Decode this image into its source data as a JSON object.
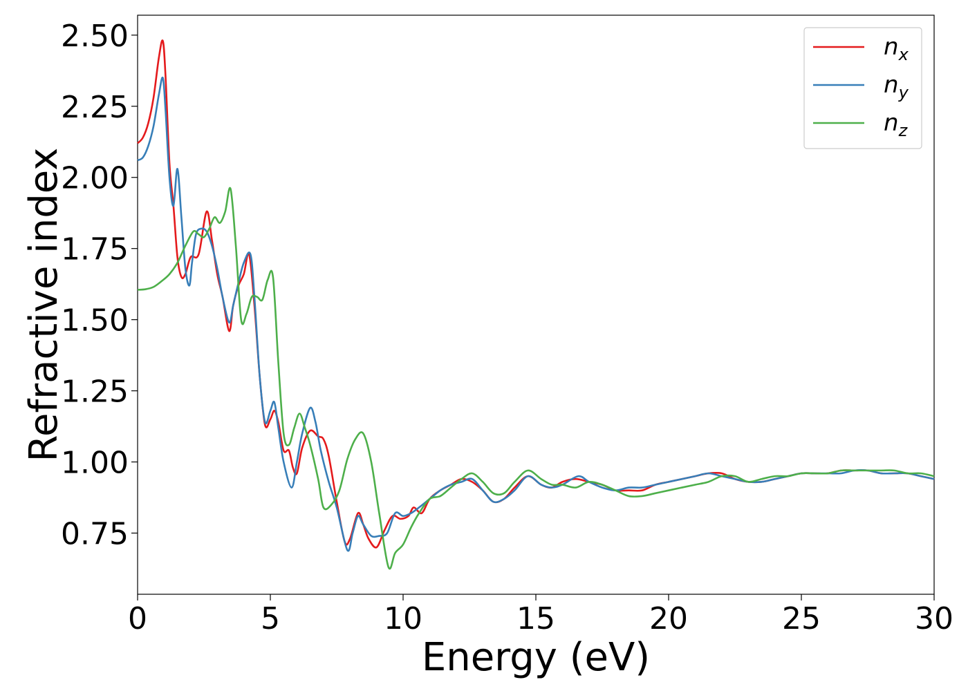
{
  "chart_data": {
    "type": "line",
    "xlabel": "Energy (eV)",
    "ylabel": "Refractive index",
    "xlim": [
      0,
      30
    ],
    "ylim": [
      0.535,
      2.57
    ],
    "xticks": [
      0,
      5,
      10,
      15,
      20,
      25,
      30
    ],
    "xtick_labels": [
      "0",
      "5",
      "10",
      "15",
      "20",
      "25",
      "30"
    ],
    "yticks": [
      0.75,
      1.0,
      1.25,
      1.5,
      1.75,
      2.0,
      2.25,
      2.5
    ],
    "ytick_labels": [
      "0.75",
      "1.00",
      "1.25",
      "1.50",
      "1.75",
      "2.00",
      "2.25",
      "2.50"
    ],
    "grid": false,
    "legend_position": "top-right",
    "series": [
      {
        "name": "n_x",
        "label_base": "n",
        "label_sub": "x",
        "color": "#e41a1c",
        "x": [
          0,
          0.2,
          0.4,
          0.6,
          0.8,
          0.95,
          1.05,
          1.2,
          1.35,
          1.5,
          1.65,
          1.8,
          2.0,
          2.3,
          2.6,
          2.8,
          3.0,
          3.2,
          3.45,
          3.6,
          3.8,
          4.0,
          4.2,
          4.4,
          4.6,
          4.8,
          5.0,
          5.15,
          5.3,
          5.5,
          5.7,
          5.85,
          6.0,
          6.2,
          6.5,
          6.8,
          7.0,
          7.2,
          7.5,
          7.8,
          8.0,
          8.3,
          8.5,
          8.7,
          9.0,
          9.3,
          9.6,
          9.9,
          10.2,
          10.4,
          10.7,
          11.0,
          11.4,
          11.8,
          12.2,
          12.6,
          13.0,
          13.4,
          13.8,
          14.2,
          14.7,
          15.2,
          15.6,
          16.0,
          16.5,
          17.0,
          17.5,
          18.0,
          18.5,
          19.0,
          19.5,
          20.0,
          20.5,
          21.0,
          21.5,
          22.0,
          22.5,
          23.0,
          23.5,
          24.0,
          24.5,
          25.0,
          25.5,
          26.0,
          26.5,
          27.0,
          27.5,
          28.0,
          28.5,
          29.0,
          29.5,
          30.0
        ],
        "values": [
          2.12,
          2.14,
          2.19,
          2.28,
          2.42,
          2.48,
          2.36,
          2.05,
          1.9,
          1.72,
          1.65,
          1.66,
          1.72,
          1.73,
          1.88,
          1.78,
          1.66,
          1.58,
          1.46,
          1.55,
          1.62,
          1.66,
          1.73,
          1.55,
          1.3,
          1.13,
          1.15,
          1.18,
          1.14,
          1.04,
          1.04,
          0.98,
          0.96,
          1.05,
          1.11,
          1.09,
          1.08,
          1.02,
          0.86,
          0.72,
          0.73,
          0.82,
          0.78,
          0.73,
          0.7,
          0.76,
          0.81,
          0.8,
          0.81,
          0.84,
          0.82,
          0.87,
          0.9,
          0.92,
          0.94,
          0.93,
          0.9,
          0.86,
          0.87,
          0.91,
          0.95,
          0.92,
          0.91,
          0.93,
          0.94,
          0.93,
          0.92,
          0.9,
          0.9,
          0.9,
          0.92,
          0.93,
          0.94,
          0.95,
          0.96,
          0.96,
          0.94,
          0.93,
          0.93,
          0.94,
          0.95,
          0.96,
          0.96,
          0.96,
          0.97,
          0.97,
          0.97,
          0.96,
          0.96,
          0.96,
          0.95,
          0.94
        ]
      },
      {
        "name": "n_y",
        "label_base": "n",
        "label_sub": "y",
        "color": "#377eb8",
        "x": [
          0,
          0.2,
          0.4,
          0.6,
          0.8,
          0.95,
          1.05,
          1.2,
          1.35,
          1.5,
          1.65,
          1.8,
          1.95,
          2.05,
          2.2,
          2.4,
          2.6,
          2.8,
          3.0,
          3.2,
          3.45,
          3.6,
          3.8,
          4.0,
          4.25,
          4.4,
          4.6,
          4.8,
          5.0,
          5.15,
          5.3,
          5.5,
          5.8,
          6.0,
          6.2,
          6.5,
          6.7,
          6.9,
          7.2,
          7.5,
          7.9,
          8.1,
          8.3,
          8.5,
          8.8,
          9.1,
          9.4,
          9.7,
          10.0,
          10.3,
          10.6,
          11.0,
          11.4,
          11.8,
          12.2,
          12.6,
          13.0,
          13.4,
          13.8,
          14.2,
          14.7,
          15.2,
          15.6,
          16.0,
          16.6,
          17.0,
          17.5,
          18.0,
          18.5,
          19.0,
          19.5,
          20.0,
          20.5,
          21.0,
          21.5,
          22.0,
          22.5,
          23.0,
          23.5,
          24.0,
          24.5,
          25.0,
          25.5,
          26.0,
          26.5,
          27.0,
          27.5,
          28.0,
          28.5,
          29.0,
          29.5,
          30.0
        ],
        "values": [
          2.06,
          2.07,
          2.11,
          2.18,
          2.29,
          2.35,
          2.24,
          2.0,
          1.9,
          2.03,
          1.86,
          1.68,
          1.62,
          1.7,
          1.8,
          1.82,
          1.81,
          1.76,
          1.68,
          1.58,
          1.49,
          1.55,
          1.63,
          1.7,
          1.73,
          1.58,
          1.3,
          1.14,
          1.18,
          1.21,
          1.12,
          1.0,
          0.91,
          1.0,
          1.1,
          1.19,
          1.14,
          1.04,
          0.93,
          0.84,
          0.69,
          0.75,
          0.81,
          0.78,
          0.74,
          0.74,
          0.75,
          0.82,
          0.81,
          0.82,
          0.84,
          0.87,
          0.9,
          0.92,
          0.93,
          0.94,
          0.9,
          0.86,
          0.87,
          0.9,
          0.95,
          0.92,
          0.91,
          0.92,
          0.95,
          0.93,
          0.91,
          0.9,
          0.91,
          0.91,
          0.92,
          0.93,
          0.94,
          0.95,
          0.96,
          0.95,
          0.94,
          0.93,
          0.93,
          0.94,
          0.95,
          0.96,
          0.96,
          0.96,
          0.96,
          0.97,
          0.97,
          0.96,
          0.96,
          0.96,
          0.95,
          0.94
        ]
      },
      {
        "name": "n_z",
        "label_base": "n",
        "label_sub": "z",
        "color": "#4daf4a",
        "x": [
          0,
          0.3,
          0.6,
          0.9,
          1.2,
          1.5,
          1.8,
          2.1,
          2.3,
          2.5,
          2.7,
          2.9,
          3.1,
          3.3,
          3.5,
          3.7,
          3.9,
          4.1,
          4.3,
          4.5,
          4.7,
          4.9,
          5.1,
          5.3,
          5.5,
          5.7,
          5.9,
          6.1,
          6.3,
          6.5,
          6.8,
          7.0,
          7.3,
          7.6,
          7.9,
          8.2,
          8.5,
          8.8,
          9.1,
          9.45,
          9.7,
          10.0,
          10.3,
          10.6,
          11.0,
          11.4,
          11.8,
          12.2,
          12.6,
          13.0,
          13.4,
          13.8,
          14.2,
          14.7,
          15.2,
          15.6,
          16.0,
          16.5,
          17.0,
          17.5,
          18.0,
          18.5,
          19.0,
          19.5,
          20.0,
          20.5,
          21.0,
          21.5,
          22.0,
          22.5,
          23.0,
          23.5,
          24.0,
          24.5,
          25.0,
          25.5,
          26.0,
          26.5,
          27.0,
          27.5,
          28.0,
          28.5,
          29.0,
          29.5,
          30.0
        ],
        "values": [
          1.605,
          1.607,
          1.615,
          1.635,
          1.66,
          1.7,
          1.76,
          1.81,
          1.8,
          1.79,
          1.82,
          1.86,
          1.84,
          1.88,
          1.96,
          1.76,
          1.5,
          1.52,
          1.58,
          1.58,
          1.57,
          1.64,
          1.65,
          1.35,
          1.1,
          1.06,
          1.12,
          1.17,
          1.12,
          1.06,
          0.94,
          0.84,
          0.85,
          0.9,
          1.01,
          1.08,
          1.1,
          1.0,
          0.82,
          0.63,
          0.68,
          0.71,
          0.77,
          0.82,
          0.87,
          0.88,
          0.91,
          0.94,
          0.96,
          0.93,
          0.89,
          0.89,
          0.93,
          0.97,
          0.94,
          0.92,
          0.92,
          0.91,
          0.93,
          0.92,
          0.9,
          0.88,
          0.88,
          0.89,
          0.9,
          0.91,
          0.92,
          0.93,
          0.95,
          0.95,
          0.93,
          0.94,
          0.95,
          0.95,
          0.96,
          0.96,
          0.96,
          0.97,
          0.97,
          0.97,
          0.97,
          0.97,
          0.96,
          0.96,
          0.95
        ]
      }
    ]
  }
}
